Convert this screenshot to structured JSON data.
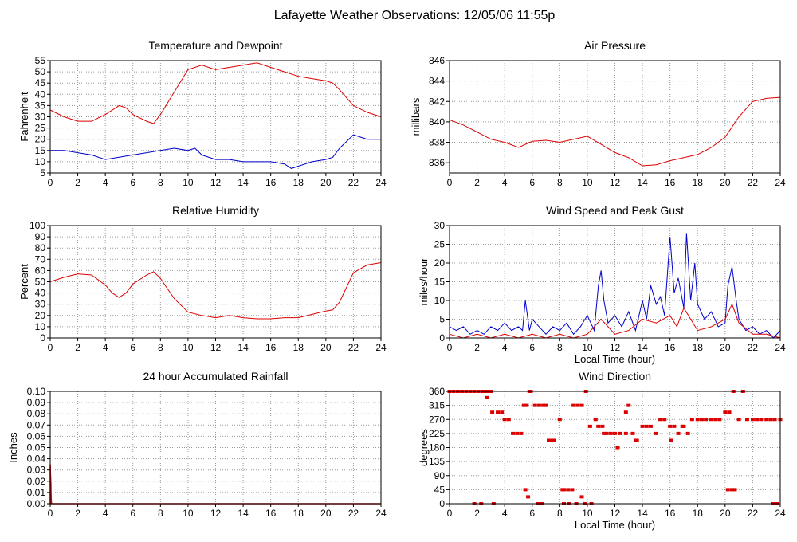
{
  "title": "Lafayette Weather Observations: 12/05/06 11:55p",
  "colors": {
    "red": "#dd0000",
    "blue": "#0000cc",
    "grid": "#999999"
  },
  "chart_data": [
    {
      "id": "temp",
      "type": "line",
      "title": "Temperature and Dewpoint",
      "xlabel": "",
      "ylabel": "Fahrenheit",
      "xlim": [
        0,
        24
      ],
      "ylim": [
        5,
        55
      ],
      "xticks": [
        0,
        2,
        4,
        6,
        8,
        10,
        12,
        14,
        16,
        18,
        20,
        22,
        24
      ],
      "yticks": [
        5,
        10,
        15,
        20,
        25,
        30,
        35,
        40,
        45,
        50,
        55
      ],
      "grid": true,
      "series": [
        {
          "color": "#dd0000",
          "x": [
            0,
            1,
            2,
            3,
            4,
            5,
            5.5,
            6,
            7,
            7.5,
            8,
            9,
            10,
            11,
            12,
            13,
            14,
            15,
            16,
            17,
            18,
            19,
            20,
            20.5,
            21,
            22,
            23,
            24
          ],
          "y": [
            33,
            30,
            28,
            28,
            31,
            35,
            34,
            31,
            28,
            27,
            31,
            41,
            51,
            53,
            51,
            52,
            53,
            54,
            52,
            50,
            48,
            47,
            46,
            45,
            42,
            35,
            32,
            30
          ]
        },
        {
          "color": "#0000cc",
          "x": [
            0,
            1,
            2,
            3,
            4,
            5,
            6,
            7,
            8,
            9,
            10,
            10.5,
            11,
            12,
            13,
            14,
            15,
            16,
            17,
            17.5,
            18,
            19,
            20,
            20.5,
            21,
            22,
            23,
            24
          ],
          "y": [
            15,
            15,
            14,
            13,
            11,
            12,
            13,
            14,
            15,
            16,
            15,
            16,
            13,
            11,
            11,
            10,
            10,
            10,
            9,
            7,
            8,
            10,
            11,
            12,
            16,
            22,
            20,
            20
          ]
        }
      ]
    },
    {
      "id": "pressure",
      "type": "line",
      "title": "Air Pressure",
      "xlabel": "",
      "ylabel": "millibars",
      "xlim": [
        0,
        24
      ],
      "ylim": [
        835,
        846
      ],
      "xticks": [
        0,
        2,
        4,
        6,
        8,
        10,
        12,
        14,
        16,
        18,
        20,
        22,
        24
      ],
      "yticks": [
        836,
        838,
        840,
        842,
        844,
        846
      ],
      "grid": true,
      "series": [
        {
          "color": "#dd0000",
          "x": [
            0,
            1,
            2,
            3,
            4,
            5,
            6,
            7,
            8,
            9,
            10,
            11,
            12,
            13,
            14,
            15,
            16,
            17,
            18,
            19,
            20,
            21,
            22,
            23,
            24
          ],
          "y": [
            840.2,
            839.7,
            839.0,
            838.3,
            838.0,
            837.5,
            838.1,
            838.2,
            838.0,
            838.3,
            838.6,
            837.8,
            837.0,
            836.5,
            835.7,
            835.8,
            836.2,
            836.5,
            836.8,
            837.5,
            838.5,
            840.5,
            842.0,
            842.3,
            842.4
          ]
        }
      ]
    },
    {
      "id": "humidity",
      "type": "line",
      "title": "Relative Humidity",
      "xlabel": "",
      "ylabel": "Percent",
      "xlim": [
        0,
        24
      ],
      "ylim": [
        0,
        100
      ],
      "xticks": [
        0,
        2,
        4,
        6,
        8,
        10,
        12,
        14,
        16,
        18,
        20,
        22,
        24
      ],
      "yticks": [
        0,
        10,
        20,
        30,
        40,
        50,
        60,
        70,
        80,
        90,
        100
      ],
      "grid": true,
      "series": [
        {
          "color": "#dd0000",
          "x": [
            0,
            1,
            2,
            3,
            4,
            4.5,
            5,
            5.5,
            6,
            7,
            7.5,
            8,
            9,
            10,
            11,
            12,
            13,
            14,
            15,
            16,
            17,
            18,
            19,
            20,
            20.5,
            21,
            22,
            23,
            24
          ],
          "y": [
            50,
            54,
            57,
            56,
            47,
            40,
            36,
            40,
            48,
            56,
            59,
            53,
            35,
            23,
            20,
            18,
            20,
            18,
            17,
            17,
            18,
            18,
            21,
            24,
            25,
            32,
            58,
            65,
            67
          ]
        }
      ]
    },
    {
      "id": "wind",
      "type": "line",
      "title": "Wind Speed and Peak Gust",
      "xlabel": "Local Time (hour)",
      "ylabel": "miles/hour",
      "xlim": [
        0,
        24
      ],
      "ylim": [
        0,
        30
      ],
      "xticks": [
        0,
        2,
        4,
        6,
        8,
        10,
        12,
        14,
        16,
        18,
        20,
        22,
        24
      ],
      "yticks": [
        0,
        5,
        10,
        15,
        20,
        25,
        30
      ],
      "grid": true,
      "series": [
        {
          "color": "#0000cc",
          "x": [
            0,
            0.5,
            1,
            1.5,
            2,
            2.5,
            3,
            3.5,
            4,
            4.5,
            5,
            5.3,
            5.5,
            5.8,
            6,
            6.5,
            7,
            7.5,
            8,
            8.5,
            9,
            9.5,
            10,
            10.5,
            10.8,
            11,
            11.2,
            11.5,
            12,
            12.5,
            13,
            13.5,
            14,
            14.3,
            14.6,
            15,
            15.3,
            15.6,
            16,
            16.3,
            16.6,
            17,
            17.2,
            17.5,
            17.8,
            18,
            18.5,
            19,
            19.5,
            20,
            20.2,
            20.5,
            20.8,
            21,
            21.5,
            22,
            22.5,
            23,
            23.5,
            24
          ],
          "y": [
            3,
            2,
            3,
            1,
            2,
            1,
            3,
            2,
            4,
            2,
            3,
            2,
            10,
            2,
            5,
            3,
            1,
            3,
            2,
            4,
            1,
            3,
            6,
            2,
            14,
            18,
            10,
            4,
            6,
            3,
            7,
            2,
            10,
            5,
            14,
            9,
            11,
            6,
            27,
            12,
            16,
            8,
            28,
            10,
            20,
            9,
            5,
            7,
            3,
            4,
            14,
            19,
            10,
            5,
            2,
            3,
            1,
            2,
            0,
            2
          ]
        },
        {
          "color": "#dd0000",
          "x": [
            0,
            1,
            2,
            3,
            4,
            5,
            6,
            7,
            8,
            9,
            10,
            11,
            11.5,
            12,
            13,
            14,
            15,
            16,
            16.5,
            17,
            17.5,
            18,
            19,
            20,
            20.5,
            21,
            22,
            23,
            24
          ],
          "y": [
            1,
            0,
            1,
            0,
            1,
            0,
            1,
            0,
            1,
            0,
            1,
            5,
            3,
            1,
            2,
            5,
            4,
            6,
            3,
            8,
            5,
            2,
            3,
            5,
            9,
            4,
            1,
            1,
            0
          ]
        }
      ]
    },
    {
      "id": "rain",
      "type": "area",
      "title": "24 hour Accumulated Rainfall",
      "xlabel": "",
      "ylabel": "Inches",
      "xlim": [
        0,
        24
      ],
      "ylim": [
        0,
        0.1
      ],
      "xticks": [
        0,
        2,
        4,
        6,
        8,
        10,
        12,
        14,
        16,
        18,
        20,
        22,
        24
      ],
      "yticks": [
        0,
        0.01,
        0.02,
        0.03,
        0.04,
        0.05,
        0.06,
        0.07,
        0.08,
        0.09,
        0.1
      ],
      "ytick_labels": [
        "0.00",
        "0.01",
        "0.02",
        "0.03",
        "0.04",
        "0.05",
        "0.06",
        "0.07",
        "0.08",
        "0.09",
        "0.10"
      ],
      "grid": true,
      "series": [
        {
          "color": "#dd0000",
          "x": [
            0,
            0.01,
            0.02,
            0.03,
            0.04,
            0.05,
            0.06,
            0.07,
            0.08,
            0.1,
            0.5,
            24
          ],
          "y": [
            0.035,
            0.033,
            0.028,
            0.024,
            0.021,
            0.018,
            0.012,
            0.006,
            0.003,
            0,
            0,
            0
          ]
        }
      ]
    },
    {
      "id": "direction",
      "type": "scatter",
      "title": "Wind Direction",
      "xlabel": "Local Time (hour)",
      "ylabel": "degrees",
      "xlim": [
        0,
        24
      ],
      "ylim": [
        0,
        360
      ],
      "xticks": [
        0,
        2,
        4,
        6,
        8,
        10,
        12,
        14,
        16,
        18,
        20,
        22,
        24
      ],
      "yticks": [
        0,
        45,
        90,
        135,
        180,
        225,
        270,
        315,
        360
      ],
      "grid": true,
      "series": [
        {
          "color": "#dd0000",
          "x": [
            0,
            0.3,
            0.6,
            0.9,
            1.2,
            1.5,
            1.8,
            2.1,
            2.4,
            2.7,
            3.0,
            2.7,
            3.1,
            3.5,
            3.8,
            4.0,
            4.3,
            4.6,
            4.9,
            5.2,
            5.4,
            5.6,
            5.9,
            6.2,
            6.5,
            6.8,
            7.0,
            7.3,
            7.6,
            8.0,
            8.3,
            8.6,
            8.9,
            9.0,
            9.3,
            9.6,
            9.9,
            10.2,
            10.6,
            10.8,
            11.1,
            11.4,
            11.7,
            12.0,
            12.4,
            12.8,
            13.0,
            13.3,
            13.6,
            14.0,
            14.3,
            14.6,
            15.0,
            15.3,
            15.6,
            16.0,
            16.3,
            16.6,
            17.0,
            17.3,
            17.6,
            18.0,
            18.3,
            18.6,
            19.0,
            19.3,
            19.6,
            20.0,
            20.3,
            20.6,
            21.0,
            21.3,
            21.6,
            22.0,
            22.3,
            22.6,
            23.0,
            23.3,
            23.6,
            24.0,
            1.8,
            2.3,
            3.2,
            5.5,
            5.7,
            6.4,
            6.7,
            8.3,
            8.7,
            9.2,
            9.6,
            9.8,
            10.3,
            5.8,
            7.2,
            7.5,
            8.2,
            11.2,
            12.2,
            20.2,
            20.5,
            20.7,
            23.5,
            23.8,
            13.5,
            16.1,
            16.9,
            12.8
          ],
          "y": [
            360,
            360,
            360,
            360,
            360,
            360,
            360,
            360,
            360,
            360,
            360,
            340,
            293,
            293,
            293,
            270,
            270,
            225,
            225,
            225,
            315,
            315,
            360,
            315,
            315,
            315,
            315,
            203,
            203,
            270,
            45,
            45,
            45,
            315,
            315,
            315,
            360,
            248,
            270,
            248,
            248,
            225,
            225,
            225,
            225,
            225,
            315,
            225,
            203,
            248,
            248,
            248,
            225,
            270,
            270,
            248,
            248,
            225,
            248,
            225,
            270,
            270,
            270,
            270,
            270,
            270,
            270,
            293,
            293,
            360,
            270,
            360,
            270,
            270,
            270,
            270,
            270,
            270,
            270,
            270,
            0,
            0,
            0,
            45,
            22,
            0,
            0,
            0,
            0,
            0,
            22,
            0,
            0,
            360,
            203,
            203,
            45,
            225,
            180,
            45,
            45,
            45,
            0,
            0,
            203,
            203,
            248,
            293
          ]
        }
      ]
    }
  ]
}
